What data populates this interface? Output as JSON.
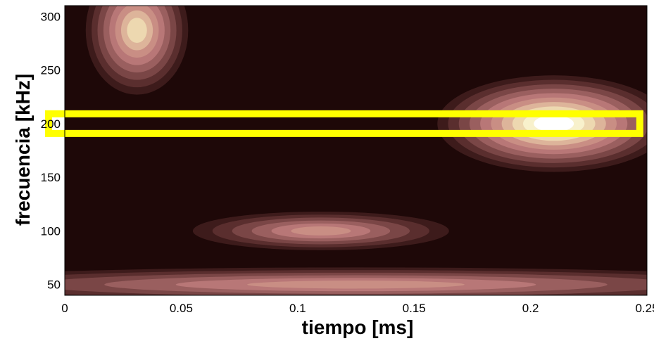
{
  "chart_data": {
    "type": "heatmap",
    "title": "",
    "xlabel": "tiempo [ms]",
    "ylabel": "frecuencia [kHz]",
    "xlim": [
      0,
      0.25
    ],
    "ylim": [
      40,
      310
    ],
    "x_ticks": [
      "0",
      "0.05",
      "0.1",
      "0.15",
      "0.2",
      "0.25"
    ],
    "x_tick_values": [
      0,
      0.05,
      0.1,
      0.15,
      0.2,
      0.25
    ],
    "y_ticks": [
      "50",
      "100",
      "150",
      "200",
      "250",
      "300"
    ],
    "y_tick_values": [
      50,
      100,
      150,
      200,
      250,
      300
    ],
    "colormap": [
      "#1e0808",
      "#3d1b1b",
      "#5a2e2e",
      "#7a4646",
      "#9a5f5f",
      "#b87777",
      "#c98e84",
      "#ddb49a",
      "#edd8b0",
      "#f8f1cc",
      "#ffffff"
    ],
    "energy_peaks": [
      {
        "t": 0.031,
        "f": 287,
        "level": 0.75,
        "t_spread": 0.022,
        "f_spread": 60
      },
      {
        "t": 0.21,
        "f": 200,
        "level": 1.0,
        "t_spread": 0.05,
        "f_spread": 45
      },
      {
        "t": 0.11,
        "f": 100,
        "level": 0.55,
        "t_spread": 0.055,
        "f_spread": 18
      },
      {
        "t": 0.125,
        "f": 50,
        "level": 0.55,
        "t_spread": 0.2,
        "f_spread": 16
      }
    ],
    "highlight_band": {
      "t_start": 0,
      "t_end": 0.243,
      "f": 200,
      "color": "#ffff00"
    }
  }
}
